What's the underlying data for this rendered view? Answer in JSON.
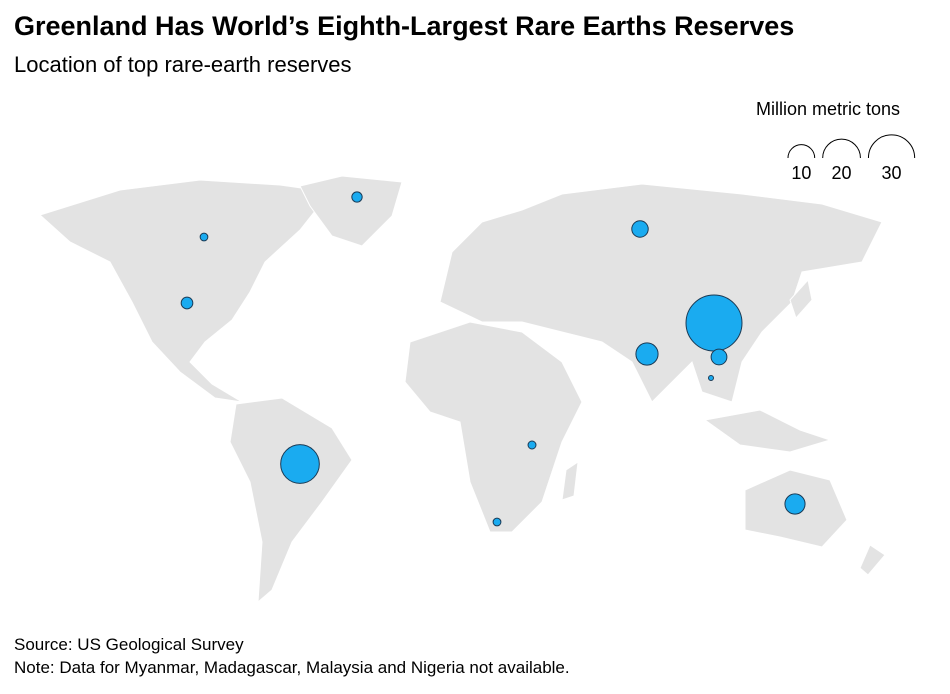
{
  "chart_data": {
    "type": "bubble-map",
    "title": "Greenland Has World’s Eighth-Largest Rare Earths Reserves",
    "subtitle": "Location of top rare-earth reserves",
    "size_legend": {
      "title": "Million metric tons",
      "values": [
        10,
        20,
        30
      ]
    },
    "values": [
      44,
      21,
      6.9,
      5.7,
      3.8,
      3.5,
      1.9,
      1.5,
      0.89,
      0.86,
      0.83,
      0.0045
    ],
    "color": "#1aabf0"
  },
  "footer": {
    "source": "Source: US Geological Survey",
    "note": "Note: Data for Myanmar, Madagascar, Malaysia and Nigeria not available."
  }
}
